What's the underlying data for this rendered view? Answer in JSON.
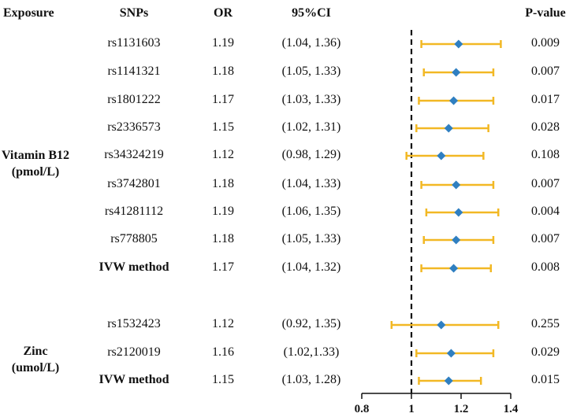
{
  "chart_data": {
    "type": "forest",
    "headers": {
      "exposure": "Exposure",
      "snps": "SNPs",
      "or": "OR",
      "ci": "95%CI",
      "pvalue": "P-value"
    },
    "groups": [
      {
        "exposure_line1": "Vitamin B12",
        "exposure_line2": "(pmol/L)"
      },
      {
        "exposure_line1": "Zinc",
        "exposure_line2": "(umol/L)"
      }
    ],
    "rows": [
      {
        "snp": "rs1131603",
        "or": "1.19",
        "ci": "(1.04, 1.36)",
        "p": "0.009",
        "est": 1.19,
        "lo": 1.04,
        "hi": 1.36,
        "bold": false
      },
      {
        "snp": "rs1141321",
        "or": "1.18",
        "ci": "(1.05, 1.33)",
        "p": "0.007",
        "est": 1.18,
        "lo": 1.05,
        "hi": 1.33,
        "bold": false
      },
      {
        "snp": "rs1801222",
        "or": "1.17",
        "ci": "(1.03, 1.33)",
        "p": "0.017",
        "est": 1.17,
        "lo": 1.03,
        "hi": 1.33,
        "bold": false
      },
      {
        "snp": "rs2336573",
        "or": "1.15",
        "ci": "(1.02, 1.31)",
        "p": "0.028",
        "est": 1.15,
        "lo": 1.02,
        "hi": 1.31,
        "bold": false
      },
      {
        "snp": "rs34324219",
        "or": "1.12",
        "ci": "(0.98, 1.29)",
        "p": "0.108",
        "est": 1.12,
        "lo": 0.98,
        "hi": 1.29,
        "bold": false
      },
      {
        "snp": "rs3742801",
        "or": "1.18",
        "ci": "(1.04, 1.33)",
        "p": "0.007",
        "est": 1.18,
        "lo": 1.04,
        "hi": 1.33,
        "bold": false
      },
      {
        "snp": "rs41281112",
        "or": "1.19",
        "ci": "(1.06, 1.35)",
        "p": "0.004",
        "est": 1.19,
        "lo": 1.06,
        "hi": 1.35,
        "bold": false
      },
      {
        "snp": "rs778805",
        "or": "1.18",
        "ci": "(1.05, 1.33)",
        "p": "0.007",
        "est": 1.18,
        "lo": 1.05,
        "hi": 1.33,
        "bold": false
      },
      {
        "snp": "IVW method",
        "or": "1.17",
        "ci": "(1.04, 1.32)",
        "p": "0.008",
        "est": 1.17,
        "lo": 1.04,
        "hi": 1.32,
        "bold": true
      },
      {
        "snp": "rs1532423",
        "or": "1.12",
        "ci": "(0.92, 1.35)",
        "p": "0.255",
        "est": 1.12,
        "lo": 0.92,
        "hi": 1.35,
        "bold": false
      },
      {
        "snp": "rs2120019",
        "or": "1.16",
        "ci": "(1.02,1.33)",
        "p": "0.029",
        "est": 1.16,
        "lo": 1.02,
        "hi": 1.33,
        "bold": false
      },
      {
        "snp": "IVW method",
        "or": "1.15",
        "ci": "(1.03, 1.28)",
        "p": "0.015",
        "est": 1.15,
        "lo": 1.03,
        "hi": 1.28,
        "bold": true
      }
    ],
    "xaxis": {
      "min": 0.8,
      "max": 1.4,
      "ticks": [
        "0.8",
        "1",
        "1.2",
        "1.4"
      ],
      "reference": 1.0
    },
    "colors": {
      "ci_line": "#f2b824",
      "point": "#2f7fc1",
      "reference": "#111111"
    }
  }
}
